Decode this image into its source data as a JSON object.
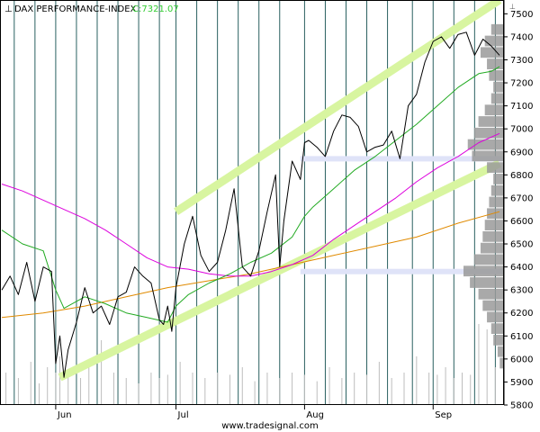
{
  "chart_data": {
    "type": "line",
    "title": "DAX PERFORMANCE-INDEX",
    "close_label": "C:7321.07",
    "source": "www.tradesignal.com",
    "colors": {
      "price": "#000000",
      "close_label": "#33cc33",
      "ma_short": "#22aa22",
      "ma_mid": "#dd00dd",
      "ma_long": "#e08a00",
      "channel": "#d8f5a0",
      "vol_profile": "#9a9a9a",
      "grid_vertical": "#2a6060",
      "volume": "#bdbdbd"
    },
    "ylim": [
      5800,
      7560
    ],
    "y_ticks": [
      "5800",
      "5900",
      "6000",
      "6100",
      "6200",
      "6300",
      "6400",
      "6500",
      "6600",
      "6700",
      "6800",
      "6900",
      "7000",
      "7100",
      "7200",
      "7300",
      "7400",
      "7500"
    ],
    "x_range_days": [
      0,
      120
    ],
    "x_labels": [
      {
        "label": "Jun",
        "day": 13
      },
      {
        "label": "Jul",
        "day": 42
      },
      {
        "label": "Aug",
        "day": 73
      },
      {
        "label": "Sep",
        "day": 104
      }
    ],
    "price_series": {
      "name": "DAX",
      "x": [
        0,
        2,
        4,
        6,
        8,
        10,
        12,
        13,
        14,
        15,
        16,
        18,
        20,
        22,
        24,
        26,
        28,
        30,
        32,
        34,
        36,
        38,
        39,
        40,
        41,
        42,
        44,
        46,
        48,
        50,
        52,
        54,
        56,
        58,
        60,
        62,
        64,
        66,
        67,
        68,
        70,
        72,
        73,
        74,
        76,
        78,
        80,
        82,
        84,
        86,
        88,
        90,
        92,
        94,
        96,
        98,
        100,
        102,
        104,
        106,
        108,
        110,
        112,
        114,
        116,
        118,
        120
      ],
      "values": [
        6300,
        6360,
        6280,
        6420,
        6250,
        6400,
        6380,
        5980,
        6100,
        5920,
        6040,
        6160,
        6310,
        6200,
        6230,
        6150,
        6270,
        6290,
        6400,
        6360,
        6330,
        6170,
        6150,
        6230,
        6120,
        6310,
        6500,
        6620,
        6450,
        6380,
        6420,
        6560,
        6740,
        6400,
        6360,
        6470,
        6640,
        6800,
        6400,
        6600,
        6860,
        6780,
        6940,
        6950,
        6920,
        6880,
        6990,
        7060,
        7050,
        7010,
        6900,
        6920,
        6930,
        6990,
        6870,
        7100,
        7150,
        7290,
        7380,
        7400,
        7350,
        7410,
        7420,
        7320,
        7390,
        7360,
        7320
      ]
    },
    "ma_short": {
      "name": "",
      "x": [
        0,
        5,
        10,
        13,
        15,
        20,
        25,
        30,
        35,
        40,
        42,
        45,
        50,
        55,
        60,
        65,
        70,
        73,
        75,
        80,
        85,
        90,
        95,
        100,
        105,
        110,
        115,
        118,
        120
      ],
      "values": [
        6560,
        6500,
        6470,
        6300,
        6220,
        6270,
        6240,
        6200,
        6180,
        6160,
        6230,
        6280,
        6330,
        6370,
        6420,
        6460,
        6530,
        6620,
        6660,
        6740,
        6820,
        6880,
        6950,
        7020,
        7100,
        7180,
        7240,
        7250,
        7270
      ]
    },
    "ma_mid": {
      "name": "",
      "x": [
        0,
        5,
        10,
        15,
        20,
        25,
        30,
        35,
        40,
        45,
        50,
        55,
        60,
        65,
        70,
        75,
        80,
        85,
        90,
        95,
        100,
        105,
        110,
        115,
        120
      ],
      "values": [
        6760,
        6730,
        6690,
        6650,
        6610,
        6560,
        6500,
        6440,
        6400,
        6390,
        6370,
        6360,
        6360,
        6380,
        6410,
        6450,
        6520,
        6580,
        6640,
        6700,
        6770,
        6830,
        6880,
        6940,
        6980
      ]
    },
    "ma_long": {
      "name": "",
      "x": [
        0,
        10,
        20,
        30,
        40,
        50,
        60,
        70,
        80,
        90,
        100,
        110,
        120
      ],
      "values": [
        6180,
        6200,
        6230,
        6270,
        6310,
        6340,
        6370,
        6410,
        6450,
        6490,
        6530,
        6590,
        6640
      ]
    },
    "channel_upper": {
      "x": [
        42,
        120
      ],
      "values": [
        6640,
        7560
      ]
    },
    "channel_lower": {
      "x": [
        14,
        120
      ],
      "values": [
        5920,
        6850
      ]
    },
    "volume_profile": [
      {
        "price": 7430,
        "value": 30
      },
      {
        "price": 7380,
        "value": 45
      },
      {
        "price": 7330,
        "value": 55
      },
      {
        "price": 7280,
        "value": 40
      },
      {
        "price": 7230,
        "value": 35
      },
      {
        "price": 7180,
        "value": 25
      },
      {
        "price": 7130,
        "value": 30
      },
      {
        "price": 7080,
        "value": 45
      },
      {
        "price": 7030,
        "value": 60
      },
      {
        "price": 6980,
        "value": 70
      },
      {
        "price": 6930,
        "value": 85
      },
      {
        "price": 6880,
        "value": 75
      },
      {
        "price": 6830,
        "value": 40
      },
      {
        "price": 6780,
        "value": 25
      },
      {
        "price": 6730,
        "value": 30
      },
      {
        "price": 6680,
        "value": 35
      },
      {
        "price": 6630,
        "value": 40
      },
      {
        "price": 6580,
        "value": 45
      },
      {
        "price": 6530,
        "value": 50
      },
      {
        "price": 6480,
        "value": 55
      },
      {
        "price": 6430,
        "value": 70
      },
      {
        "price": 6380,
        "value": 95
      },
      {
        "price": 6330,
        "value": 80
      },
      {
        "price": 6280,
        "value": 60
      },
      {
        "price": 6230,
        "value": 50
      },
      {
        "price": 6180,
        "value": 40
      },
      {
        "price": 6130,
        "value": 30
      },
      {
        "price": 6080,
        "value": 25
      },
      {
        "price": 6030,
        "value": 15
      },
      {
        "price": 5980,
        "value": 10
      }
    ],
    "highlight_levels": [
      6870,
      6380
    ],
    "vertical_grid_days": [
      3,
      8,
      13,
      18,
      23,
      28,
      33,
      38,
      42,
      47,
      52,
      57,
      62,
      67,
      73,
      78,
      83,
      88,
      93,
      99,
      104,
      109,
      114,
      119
    ],
    "volume_bars": {
      "x": [
        1,
        4,
        7,
        9,
        11,
        13,
        14,
        16,
        19,
        21,
        24,
        27,
        30,
        33,
        36,
        38,
        40,
        43,
        46,
        49,
        52,
        55,
        58,
        61,
        64,
        67,
        70,
        73,
        76,
        79,
        82,
        85,
        88,
        91,
        94,
        97,
        100,
        103,
        105,
        107,
        109,
        111,
        113,
        115,
        117,
        119
      ],
      "values": [
        30,
        25,
        40,
        20,
        35,
        30,
        45,
        28,
        25,
        35,
        60,
        30,
        25,
        20,
        30,
        25,
        28,
        40,
        30,
        25,
        30,
        28,
        35,
        22,
        30,
        25,
        30,
        28,
        22,
        35,
        25,
        30,
        28,
        40,
        25,
        30,
        45,
        30,
        28,
        35,
        25,
        30,
        28,
        75,
        70,
        35
      ]
    }
  }
}
